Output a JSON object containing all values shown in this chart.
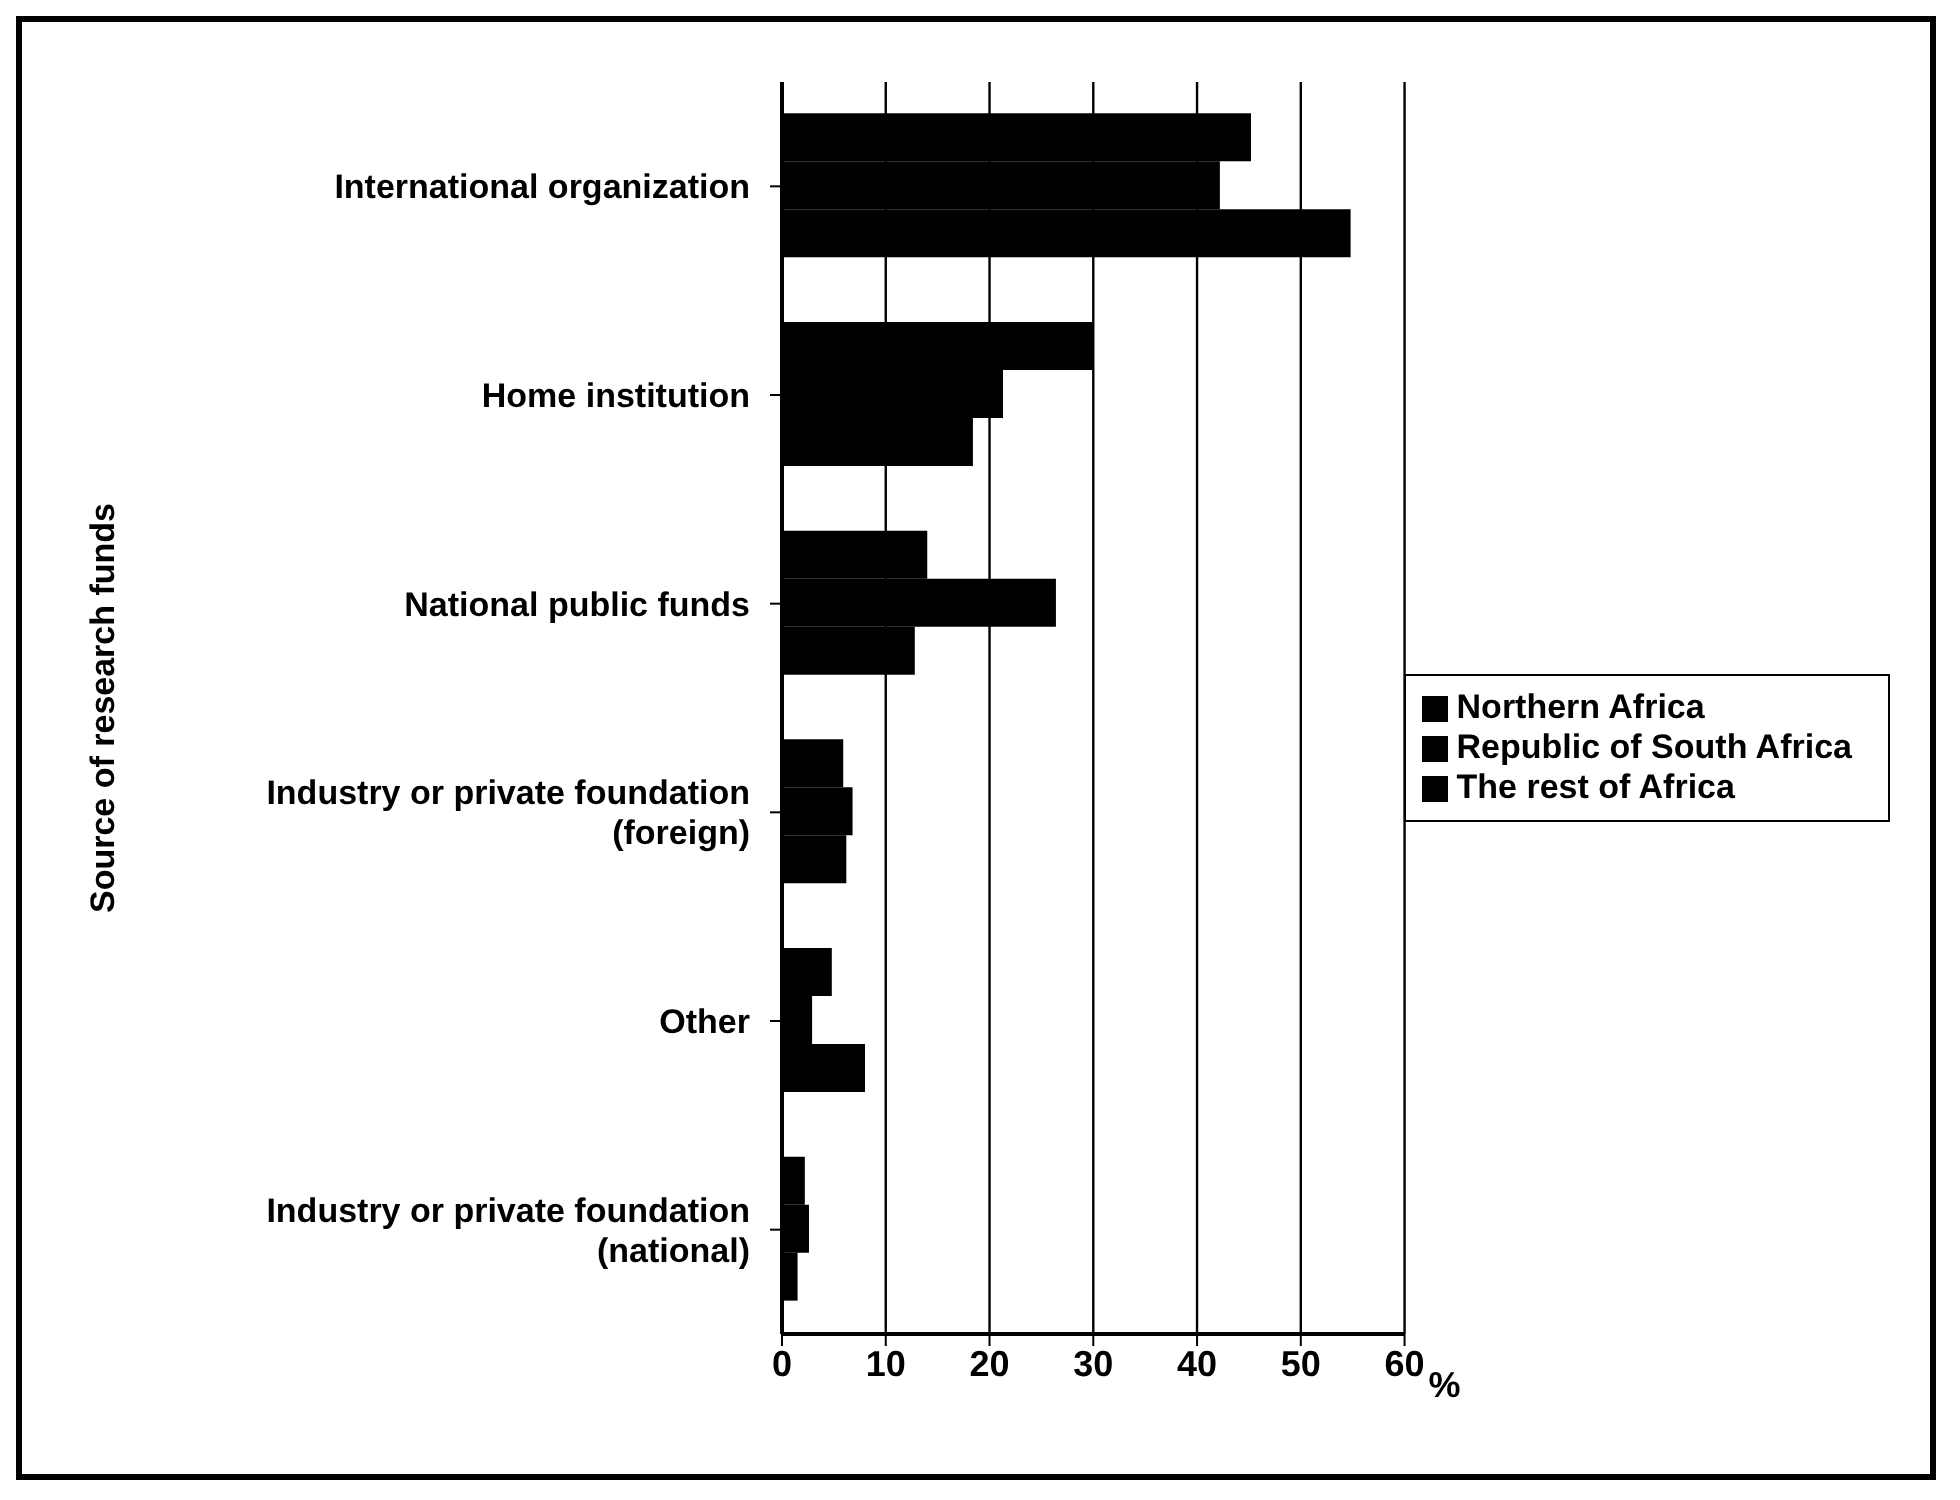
{
  "chart_data": {
    "type": "bar",
    "orientation": "horizontal",
    "ylabel": "Source of research funds",
    "xlabel": "%",
    "categories": [
      "International organization",
      "Home institution",
      "National public funds",
      "Industry or private foundation (foreign)",
      "Other",
      "Industry or private foundation (national)"
    ],
    "series": [
      {
        "name": "Northern Africa",
        "color": "#000000",
        "values": [
          45.2,
          30,
          14,
          5.9,
          4.8,
          2.2
        ]
      },
      {
        "name": "Republic of South Africa",
        "color": "#000000",
        "values": [
          42.2,
          21.3,
          26.4,
          6.8,
          2.9,
          2.6
        ]
      },
      {
        "name": "The rest of Africa",
        "color": "#000000",
        "values": [
          54.8,
          18.4,
          12.8,
          6.2,
          8,
          1.5
        ]
      }
    ],
    "xlim": [
      0,
      60
    ],
    "xticks": [
      0,
      10,
      20,
      30,
      40,
      50,
      60
    ],
    "grid": "x",
    "legend": "right"
  }
}
